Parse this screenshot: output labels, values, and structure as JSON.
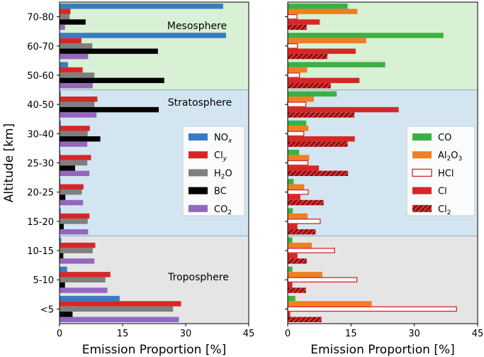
{
  "chart_data": [
    {
      "type": "bar",
      "orientation": "horizontal",
      "ylabel": "Altitude [km]",
      "xlabel": "Emission Proportion [%]",
      "xlim": [
        0,
        45
      ],
      "xticks": [
        0,
        15,
        30,
        45
      ],
      "categories": [
        "<5",
        "5-10",
        "10-15",
        "15-20",
        "20-25",
        "25-30",
        "30-40",
        "40-50",
        "50-60",
        "60-70",
        "70-80"
      ],
      "regions": [
        {
          "label": "Troposphere",
          "from": "<5",
          "to": "10-15",
          "color": "#e5e5e5"
        },
        {
          "label": "Stratosphere",
          "from": "15-20",
          "to": "40-50",
          "color": "#d3e5f0"
        },
        {
          "label": "Mesosphere",
          "from": "50-60",
          "to": "70-80",
          "color": "#d8f0d3"
        }
      ],
      "legend_position": "center-right",
      "series": [
        {
          "name": "NOx",
          "legend_main": "NO",
          "legend_sub": "x",
          "color": "#3a7bbf",
          "values": [
            14.3,
            1.8,
            0.4,
            0.3,
            0.2,
            0.2,
            0.3,
            0.3,
            2.0,
            39.6,
            38.9
          ]
        },
        {
          "name": "Cly",
          "legend_main": "Cl",
          "legend_sub": "y",
          "color": "#d62728",
          "values": [
            28.9,
            12.1,
            8.5,
            7.1,
            5.7,
            7.5,
            7.2,
            9.0,
            5.5,
            5.2,
            2.6
          ]
        },
        {
          "name": "H2O",
          "legend_main": "H",
          "legend_sub": "2",
          "legend_tail": "O",
          "color": "#7f7f7f",
          "values": [
            27.0,
            10.9,
            7.9,
            6.7,
            5.3,
            6.6,
            6.7,
            8.3,
            8.3,
            7.8,
            2.4
          ]
        },
        {
          "name": "BC",
          "legend_main": "BC",
          "color": "#000000",
          "values": [
            3.1,
            1.3,
            0.9,
            1.0,
            1.4,
            3.7,
            9.7,
            23.6,
            24.9,
            23.4,
            6.2
          ]
        },
        {
          "name": "CO2",
          "legend_main": "CO",
          "legend_sub": "2",
          "color": "#9467bd",
          "values": [
            28.4,
            11.4,
            8.3,
            6.8,
            5.6,
            7.1,
            6.6,
            8.8,
            7.9,
            6.8,
            1.3
          ]
        }
      ]
    },
    {
      "type": "bar",
      "orientation": "horizontal",
      "xlabel": "Emission Proportion [%]",
      "xlim": [
        0,
        45
      ],
      "xticks": [
        0,
        15,
        30,
        45
      ],
      "categories": [
        "<5",
        "5-10",
        "10-15",
        "15-20",
        "20-25",
        "25-30",
        "30-40",
        "40-50",
        "50-60",
        "60-70",
        "70-80"
      ],
      "legend_position": "center-right",
      "series": [
        {
          "name": "CO",
          "legend_main": "CO",
          "color": "#3cb043",
          "style": "solid",
          "values": [
            1.8,
            1.1,
            1.1,
            1.2,
            1.4,
            2.7,
            4.4,
            11.6,
            23.1,
            36.9,
            14.2
          ]
        },
        {
          "name": "Al2O3",
          "legend_main": "Al",
          "legend_sub": "2",
          "legend_tail": "O",
          "legend_sub2": "3",
          "color": "#f07f22",
          "style": "solid",
          "values": [
            19.9,
            8.2,
            5.7,
            4.7,
            3.9,
            5.1,
            4.9,
            6.2,
            4.6,
            18.6,
            16.5
          ]
        },
        {
          "name": "HCl",
          "legend_main": "HCl",
          "color": "#d62728",
          "style": "outline",
          "values": [
            40.0,
            16.4,
            11.1,
            7.7,
            4.9,
            4.8,
            3.8,
            4.3,
            2.8,
            2.3,
            2.2
          ]
        },
        {
          "name": "Cl",
          "legend_main": "Cl",
          "color": "#d62728",
          "style": "solid",
          "values": [
            0.6,
            1.1,
            2.3,
            2.3,
            3.0,
            7.4,
            15.9,
            26.3,
            17.0,
            16.1,
            7.6
          ]
        },
        {
          "name": "Cl2",
          "legend_main": "Cl",
          "legend_sub": "2",
          "color": "#d62728",
          "style": "hatched",
          "values": [
            8.0,
            4.3,
            4.5,
            6.6,
            8.5,
            14.3,
            14.2,
            15.8,
            10.2,
            9.4,
            4.5
          ]
        }
      ]
    }
  ]
}
